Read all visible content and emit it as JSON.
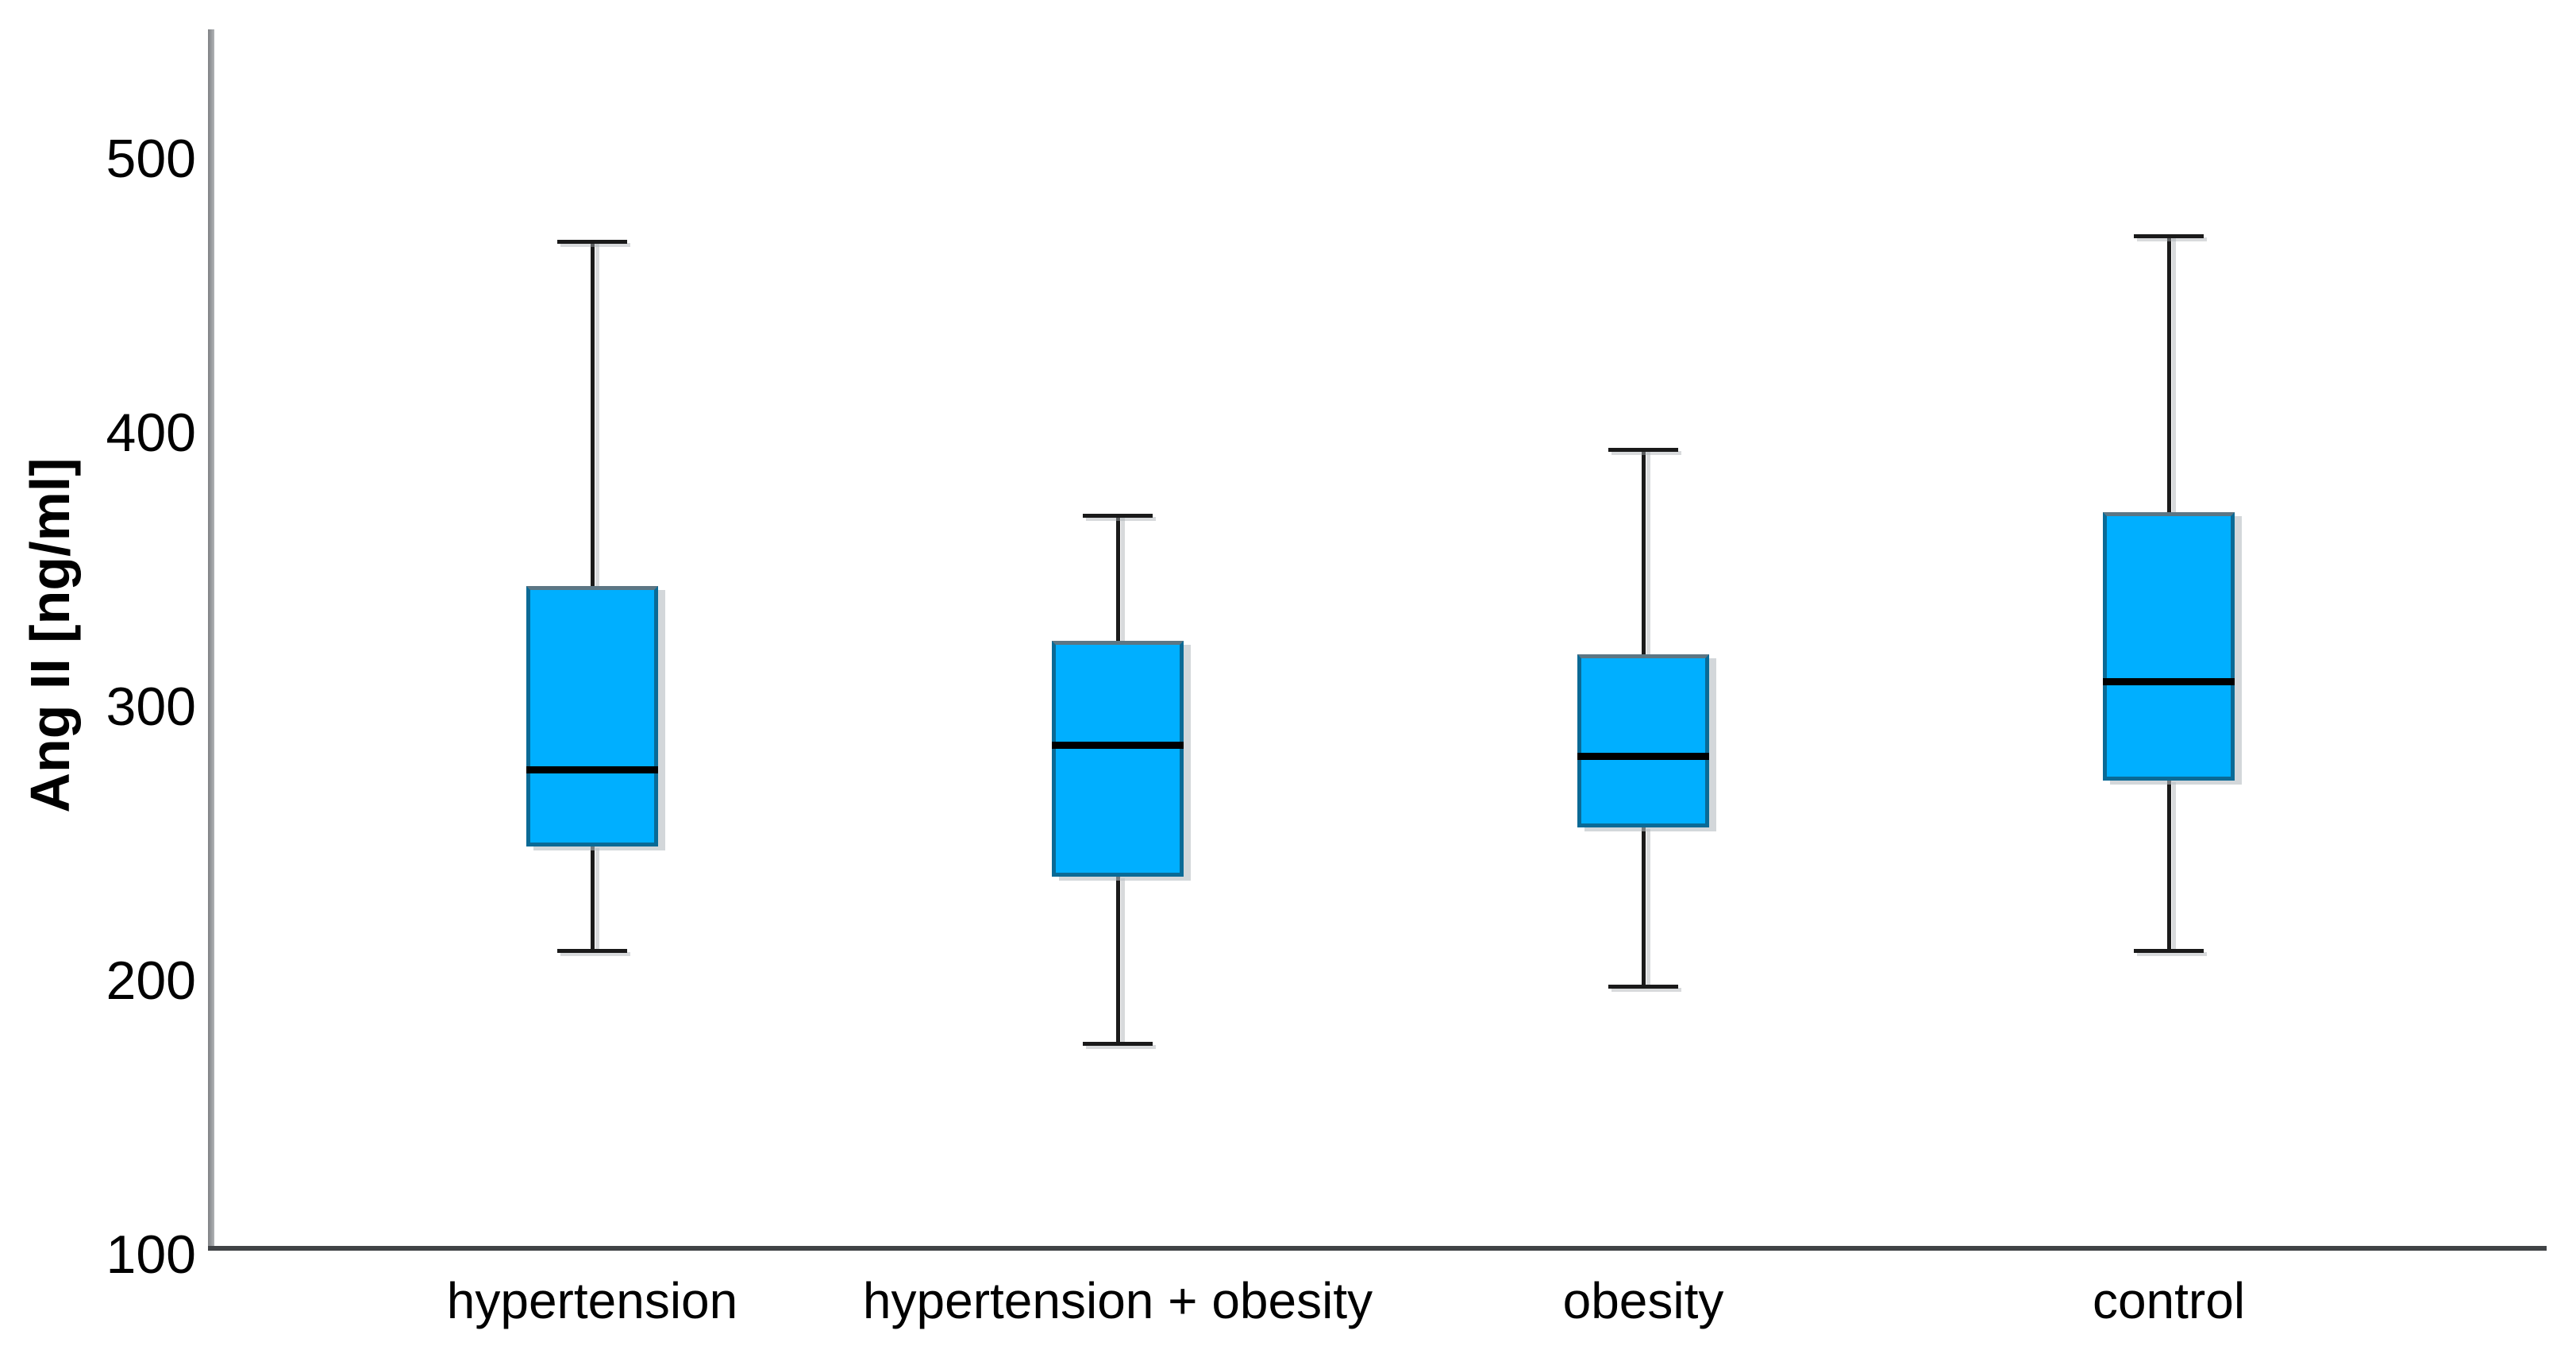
{
  "chart_data": {
    "type": "boxplot",
    "title": "",
    "xlabel": "",
    "ylabel": "Ang II [ng/ml]",
    "categories": [
      "hypertension",
      "hypertension + obesity",
      "obesity",
      "control"
    ],
    "boxes": [
      {
        "category": "hypertension",
        "min": 211,
        "q1": 249,
        "median": 277,
        "q3": 344,
        "max": 470
      },
      {
        "category": "hypertension + obesity",
        "min": 177,
        "q1": 238,
        "median": 286,
        "q3": 324,
        "max": 370
      },
      {
        "category": "obesity",
        "min": 198,
        "q1": 256,
        "median": 282,
        "q3": 319,
        "max": 394
      },
      {
        "category": "control",
        "min": 211,
        "q1": 273,
        "median": 309,
        "q3": 371,
        "max": 472
      }
    ],
    "yticks": [
      100,
      200,
      300,
      400,
      500
    ],
    "ylim": [
      100,
      550
    ],
    "grid": false,
    "legend": "none",
    "colors": {
      "box_fill": "#00AFFF",
      "box_border": "#0a6a96",
      "median": "#000000",
      "whisker": "#1a1a1a",
      "y_axis": "#97999b",
      "x_axis": "#404346",
      "text": "#000000",
      "background": "#ffffff"
    }
  }
}
